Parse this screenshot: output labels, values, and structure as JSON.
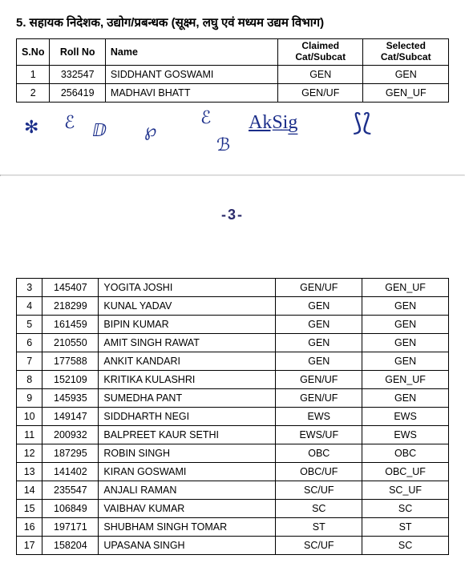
{
  "heading": "5. सहायक निदेशक, उद्योग/प्रबन्धक (सूक्ष्म, लघु एवं मध्यम उद्यम विभाग)",
  "columns": {
    "sno": "S.No",
    "roll": "Roll No",
    "name": "Name",
    "claimed": "Claimed Cat/Subcat",
    "selected": "Selected Cat/Subcat"
  },
  "rows_top": [
    {
      "sno": "1",
      "roll": "332547",
      "name": "SIDDHANT GOSWAMI",
      "claimed": "GEN",
      "selected": "GEN"
    },
    {
      "sno": "2",
      "roll": "256419",
      "name": "MADHAVI BHATT",
      "claimed": "GEN/UF",
      "selected": "GEN_UF"
    }
  ],
  "page_num": "-3-",
  "rows_bottom": [
    {
      "sno": "3",
      "roll": "145407",
      "name": "YOGITA JOSHI",
      "claimed": "GEN/UF",
      "selected": "GEN_UF"
    },
    {
      "sno": "4",
      "roll": "218299",
      "name": "KUNAL YADAV",
      "claimed": "GEN",
      "selected": "GEN"
    },
    {
      "sno": "5",
      "roll": "161459",
      "name": "BIPIN KUMAR",
      "claimed": "GEN",
      "selected": "GEN"
    },
    {
      "sno": "6",
      "roll": "210550",
      "name": "AMIT SINGH RAWAT",
      "claimed": "GEN",
      "selected": "GEN"
    },
    {
      "sno": "7",
      "roll": "177588",
      "name": "ANKIT KANDARI",
      "claimed": "GEN",
      "selected": "GEN"
    },
    {
      "sno": "8",
      "roll": "152109",
      "name": "KRITIKA KULASHRI",
      "claimed": "GEN/UF",
      "selected": "GEN_UF"
    },
    {
      "sno": "9",
      "roll": "145935",
      "name": "SUMEDHA PANT",
      "claimed": "GEN/UF",
      "selected": "GEN"
    },
    {
      "sno": "10",
      "roll": "149147",
      "name": "SIDDHARTH NEGI",
      "claimed": "EWS",
      "selected": "EWS"
    },
    {
      "sno": "11",
      "roll": "200932",
      "name": "BALPREET KAUR SETHI",
      "claimed": "EWS/UF",
      "selected": "EWS"
    },
    {
      "sno": "12",
      "roll": "187295",
      "name": "ROBIN SINGH",
      "claimed": "OBC",
      "selected": "OBC"
    },
    {
      "sno": "13",
      "roll": "141402",
      "name": "KIRAN GOSWAMI",
      "claimed": "OBC/UF",
      "selected": "OBC_UF"
    },
    {
      "sno": "14",
      "roll": "235547",
      "name": "ANJALI RAMAN",
      "claimed": "SC/UF",
      "selected": "SC_UF"
    },
    {
      "sno": "15",
      "roll": "106849",
      "name": "VAIBHAV KUMAR",
      "claimed": "SC",
      "selected": "SC"
    },
    {
      "sno": "16",
      "roll": "197171",
      "name": "SHUBHAM SINGH TOMAR",
      "claimed": "ST",
      "selected": "ST"
    },
    {
      "sno": "17",
      "roll": "158204",
      "name": "UPASANA SINGH",
      "claimed": "SC/UF",
      "selected": "SC"
    }
  ],
  "signatures": [
    "✻",
    "ℰ",
    "ⅅ",
    "℘",
    "ℰ",
    "AkS̲i̲g̲",
    "⟆⟅",
    "ℬ"
  ]
}
